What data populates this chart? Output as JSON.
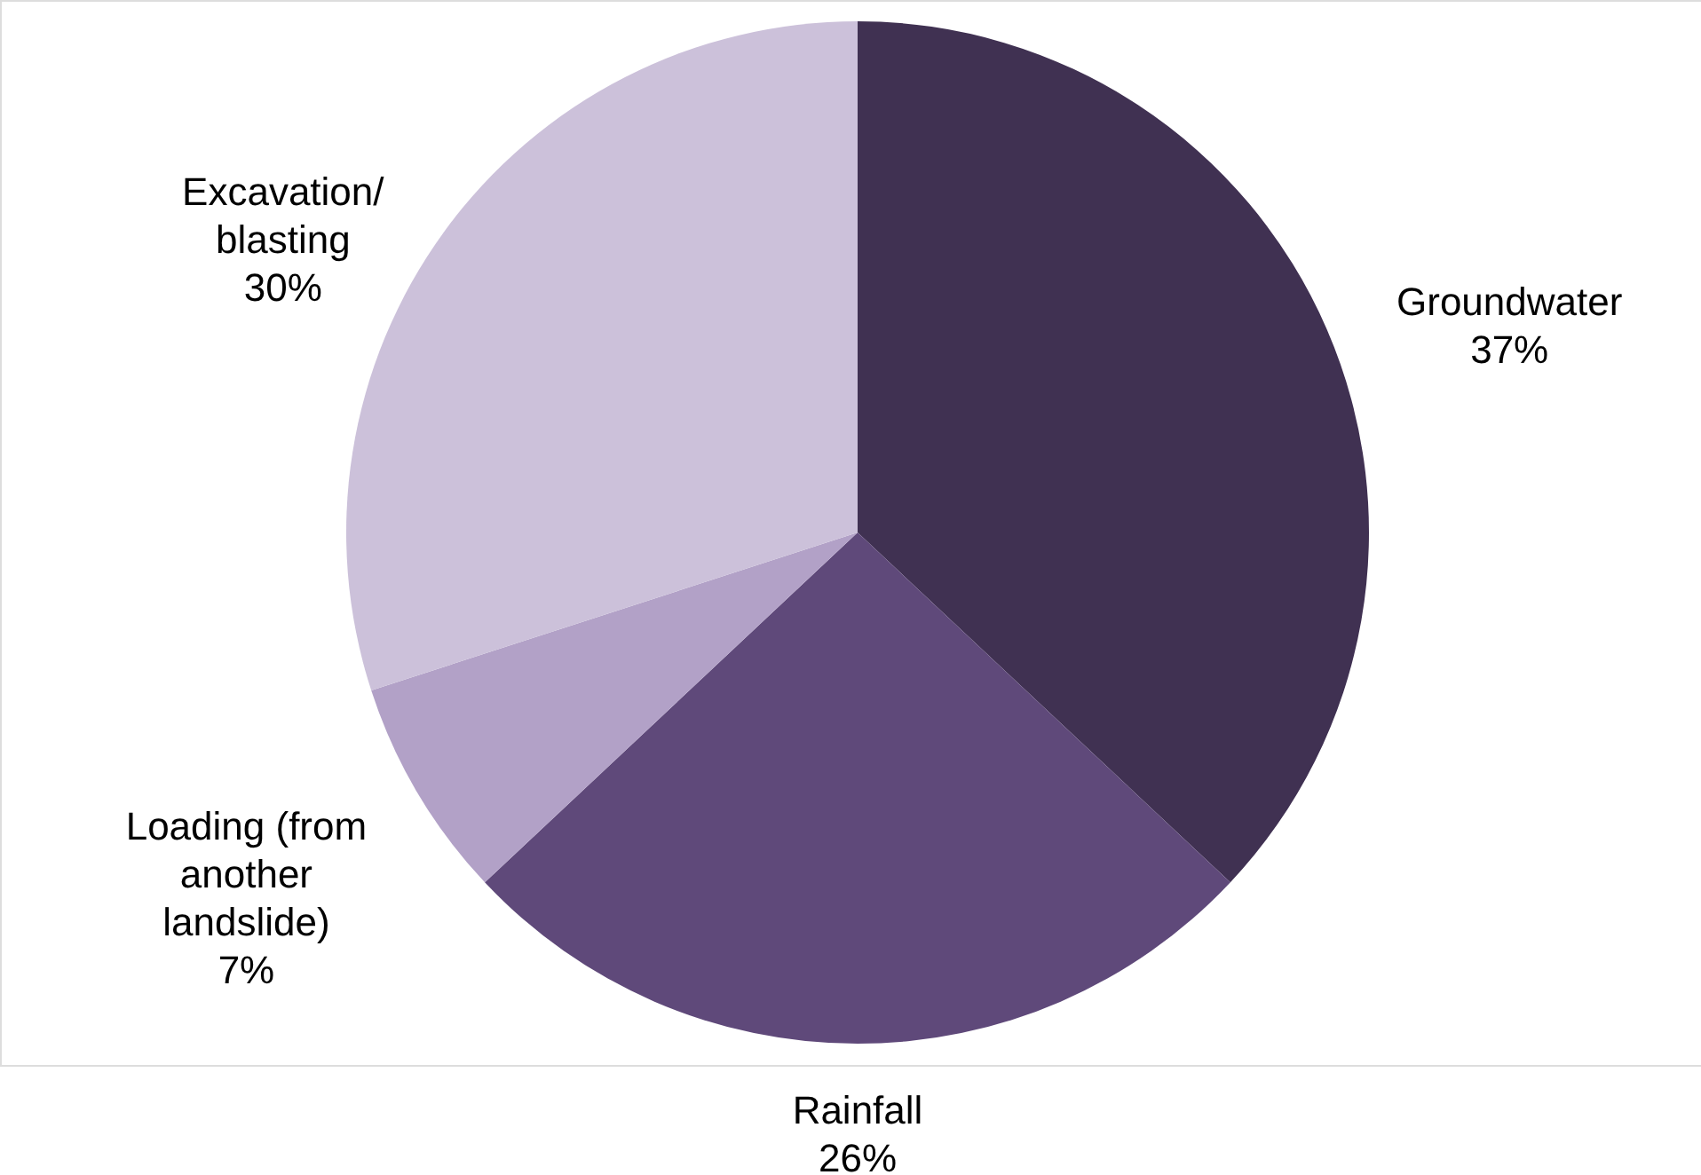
{
  "chart_data": {
    "type": "pie",
    "categories": [
      "Groundwater",
      "Rainfall",
      "Loading (from another landslide)",
      "Excavation/ blasting"
    ],
    "values": [
      37,
      26,
      7,
      30
    ],
    "colors": [
      "#403152",
      "#5f497a",
      "#b2a1c7",
      "#ccc1da"
    ],
    "value_labels": [
      "37%",
      "26%",
      "7%",
      "30%"
    ]
  }
}
